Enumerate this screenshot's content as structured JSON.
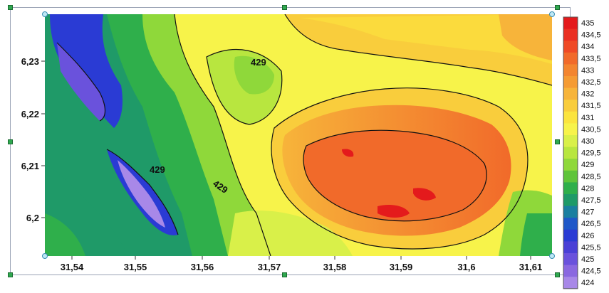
{
  "chart_data": {
    "type": "heatmap",
    "x_ticks": [
      "31,54",
      "31,55",
      "31,56",
      "31,57",
      "31,58",
      "31,59",
      "31,6",
      "31,61"
    ],
    "y_ticks": [
      "6,23",
      "6,22",
      "6,21",
      "6,2"
    ],
    "xlim": [
      31.535,
      31.613
    ],
    "ylim": [
      6.194,
      6.238
    ],
    "contour_labels": [
      "429",
      "429",
      "429"
    ],
    "legend": {
      "placement": "right",
      "levels": [
        "435",
        "434,5",
        "434",
        "433,5",
        "433",
        "432,5",
        "432",
        "431,5",
        "431",
        "430,5",
        "430",
        "429,5",
        "429",
        "428,5",
        "428",
        "427,5",
        "427",
        "426,5",
        "426",
        "425,5",
        "425",
        "424,5",
        "424"
      ],
      "colors": [
        "#e41a1c",
        "#ea2f22",
        "#ef4a26",
        "#f16a2a",
        "#f3852f",
        "#f59b33",
        "#f7b43a",
        "#f9cd3c",
        "#fbe43e",
        "#f7f34a",
        "#d9f049",
        "#b8e63f",
        "#8fd83a",
        "#5fc43a",
        "#2faf4b",
        "#1f9a68",
        "#1b7fa0",
        "#1f58c8",
        "#2a3bd4",
        "#4a40d6",
        "#6a52dc",
        "#8a68e0",
        "#a888e8"
      ]
    }
  },
  "colors": {
    "frame": "#9aa3b5",
    "handle": "#2fa84f"
  }
}
